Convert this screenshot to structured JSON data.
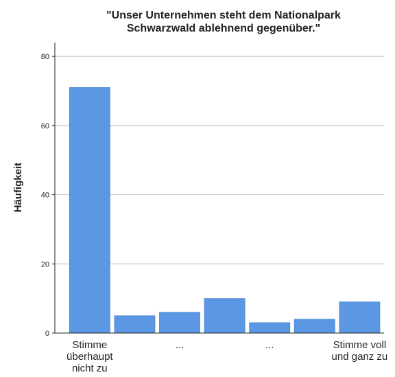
{
  "chart_data": {
    "type": "bar",
    "title": [
      "\"Unser Unternehmen steht dem Nationalpark",
      "Schwarzwald ablehnend gegenüber.\""
    ],
    "y_label": "Häufigkeit",
    "categories": [
      "Stimme überhaupt nicht zu",
      null,
      "...",
      null,
      "...",
      null,
      "Stimme voll und ganz zu"
    ],
    "values": [
      71,
      5,
      6,
      10,
      3,
      4,
      9
    ],
    "color": "#5b97e3",
    "ylim": [
      0,
      84
    ],
    "yticks": [
      0,
      20,
      40,
      60,
      80
    ],
    "grid": true
  }
}
